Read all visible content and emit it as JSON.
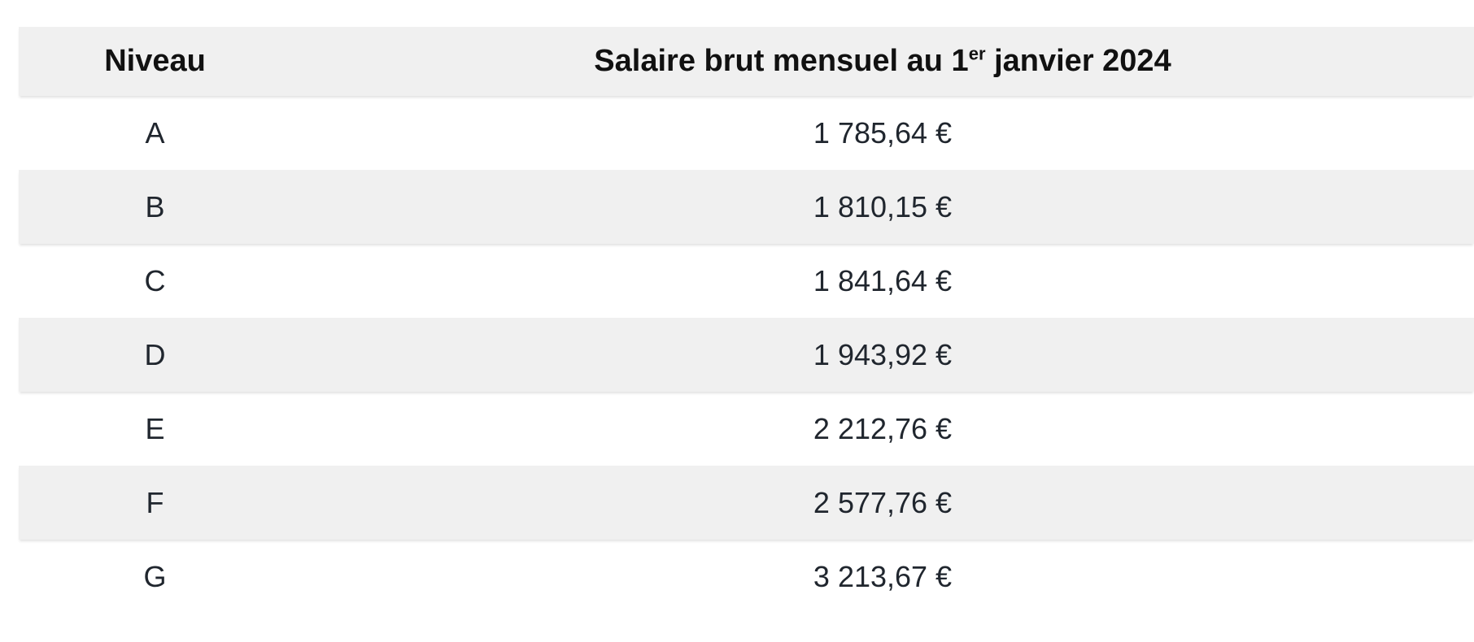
{
  "table": {
    "header": {
      "niveau": "Niveau",
      "salaire_prefix": "Salaire brut mensuel au 1",
      "salaire_sup": "er",
      "salaire_suffix": " janvier 2024"
    },
    "rows": [
      {
        "niveau": "A",
        "salaire": "1 785,64 €"
      },
      {
        "niveau": "B",
        "salaire": "1 810,15 €"
      },
      {
        "niveau": "C",
        "salaire": "1 841,64 €"
      },
      {
        "niveau": "D",
        "salaire": "1 943,92 €"
      },
      {
        "niveau": "E",
        "salaire": "2 212,76 €"
      },
      {
        "niveau": "F",
        "salaire": "2 577,76 €"
      },
      {
        "niveau": "G",
        "salaire": "3 213,67 €"
      }
    ],
    "colors": {
      "stripe": "#f0f0f0",
      "header_text": "#111111",
      "cell_text": "#20262e"
    }
  },
  "chart_data": {
    "type": "table",
    "columns": [
      "Niveau",
      "Salaire brut mensuel au 1er janvier 2024"
    ],
    "rows": [
      [
        "A",
        "1 785,64 €"
      ],
      [
        "B",
        "1 810,15 €"
      ],
      [
        "C",
        "1 841,64 €"
      ],
      [
        "D",
        "1 943,92 €"
      ],
      [
        "E",
        "2 212,76 €"
      ],
      [
        "F",
        "2 577,76 €"
      ],
      [
        "G",
        "3 213,67 €"
      ]
    ]
  }
}
